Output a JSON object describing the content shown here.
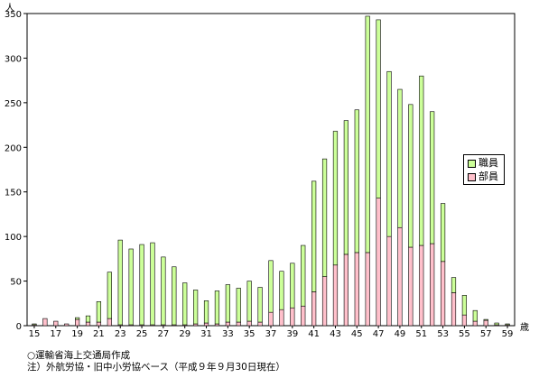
{
  "chart_data": {
    "type": "bar",
    "stacked": true,
    "yunit": "人",
    "xunit": "歳",
    "ylim": [
      0,
      350
    ],
    "yticks": [
      0,
      50,
      100,
      150,
      200,
      250,
      300,
      350
    ],
    "ytick_labels": [
      "0",
      "50",
      "100",
      "150",
      "200",
      "250",
      "300",
      "350"
    ],
    "categories": [
      15,
      16,
      17,
      18,
      19,
      20,
      21,
      22,
      23,
      24,
      25,
      26,
      27,
      28,
      29,
      30,
      31,
      32,
      33,
      34,
      35,
      36,
      37,
      38,
      39,
      40,
      41,
      42,
      43,
      44,
      45,
      46,
      47,
      48,
      49,
      50,
      51,
      52,
      53,
      54,
      55,
      56,
      57,
      58,
      59
    ],
    "xtick_labels": [
      "15",
      "17",
      "19",
      "21",
      "23",
      "25",
      "27",
      "29",
      "31",
      "33",
      "35",
      "37",
      "39",
      "41",
      "43",
      "45",
      "47",
      "49",
      "51",
      "53",
      "55",
      "57",
      "59"
    ],
    "series": [
      {
        "name": "部員",
        "color": "#ffc0cb",
        "values": [
          1,
          8,
          5,
          2,
          7,
          4,
          4,
          8,
          1,
          1,
          1,
          1,
          1,
          1,
          1,
          2,
          3,
          2,
          4,
          4,
          5,
          4,
          15,
          18,
          20,
          22,
          38,
          55,
          68,
          80,
          82,
          82,
          143,
          100,
          110,
          88,
          90,
          92,
          72,
          37,
          12,
          5,
          6,
          1,
          1
        ]
      },
      {
        "name": "職員",
        "color": "#ccff99",
        "values": [
          1,
          0,
          0,
          0,
          2,
          7,
          23,
          52,
          95,
          85,
          90,
          92,
          76,
          65,
          47,
          38,
          25,
          37,
          42,
          38,
          45,
          39,
          58,
          43,
          50,
          68,
          124,
          132,
          150,
          150,
          160,
          265,
          200,
          185,
          155,
          160,
          190,
          148,
          65,
          17,
          22,
          12,
          1,
          2,
          1
        ]
      }
    ]
  },
  "notes": [
    "○運輸省海上交通局作成",
    "注）外航労協・旧中小労協ベース（平成９年９月30日現在）"
  ]
}
